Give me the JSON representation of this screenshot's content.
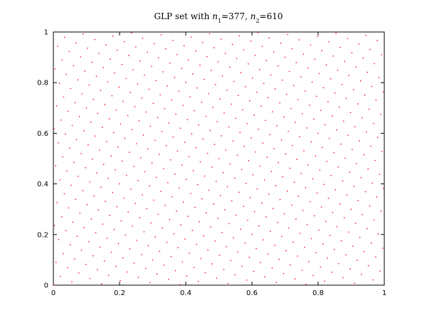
{
  "chart_data": {
    "type": "scatter",
    "title": [
      {
        "text": "GLP set with ",
        "style": "normal"
      },
      {
        "text": "n",
        "style": "italic"
      },
      {
        "text": "1",
        "style": "sub"
      },
      {
        "text": "=377, ",
        "style": "normal"
      },
      {
        "text": "n",
        "style": "italic"
      },
      {
        "text": "2",
        "style": "sub"
      },
      {
        "text": "=610",
        "style": "normal"
      }
    ],
    "color": "#ff0000",
    "xlim": [
      0,
      1
    ],
    "ylim": [
      0,
      1
    ],
    "xticks": [
      0,
      0.2,
      0.4,
      0.6,
      0.8,
      1
    ],
    "yticks": [
      0,
      0.2,
      0.4,
      0.6,
      0.8,
      1
    ],
    "grid": false,
    "x": [
      0.0,
      0.002,
      0.003,
      0.005,
      0.007,
      0.008,
      0.01,
      0.011,
      0.013,
      0.015,
      0.016,
      0.018,
      0.02,
      0.021,
      0.023,
      0.025,
      0.026,
      0.028,
      0.03,
      0.031,
      0.033,
      0.034,
      0.036,
      0.038,
      0.039,
      0.041,
      0.043,
      0.044,
      0.046,
      0.048,
      0.049,
      0.051,
      0.052,
      0.054,
      0.056,
      0.057,
      0.059,
      0.061,
      0.062,
      0.064,
      0.066,
      0.067,
      0.069,
      0.07,
      0.072,
      0.074,
      0.075,
      0.077,
      0.079,
      0.08,
      0.082,
      0.084,
      0.085,
      0.087,
      0.089,
      0.09,
      0.092,
      0.093,
      0.095,
      0.097,
      0.098,
      0.1,
      0.102,
      0.103,
      0.105,
      0.107,
      0.108,
      0.11,
      0.111,
      0.113,
      0.115,
      0.116,
      0.118,
      0.12,
      0.121,
      0.123,
      0.125,
      0.126,
      0.128,
      0.13,
      0.131,
      0.133,
      0.134,
      0.136,
      0.138,
      0.139,
      0.141,
      0.143,
      0.144,
      0.146,
      0.148,
      0.149,
      0.151,
      0.152,
      0.154,
      0.156,
      0.157,
      0.159,
      0.161,
      0.162,
      0.164,
      0.166,
      0.167,
      0.169,
      0.17,
      0.172,
      0.174,
      0.175,
      0.177,
      0.179,
      0.18,
      0.182,
      0.184,
      0.185,
      0.187,
      0.189,
      0.19,
      0.192,
      0.193,
      0.195,
      0.197,
      0.198,
      0.2,
      0.202,
      0.203,
      0.205,
      0.207,
      0.208,
      0.21,
      0.211,
      0.213,
      0.215,
      0.216,
      0.218,
      0.22,
      0.221,
      0.223,
      0.225,
      0.226,
      0.228,
      0.23,
      0.231,
      0.233,
      0.234,
      0.236,
      0.238,
      0.239,
      0.241,
      0.243,
      0.244,
      0.246,
      0.248,
      0.249,
      0.251,
      0.252,
      0.254,
      0.256,
      0.257,
      0.259,
      0.261,
      0.262,
      0.264,
      0.266,
      0.267,
      0.269,
      0.27,
      0.272,
      0.274,
      0.275,
      0.277,
      0.279,
      0.28,
      0.282,
      0.284,
      0.285,
      0.287,
      0.289,
      0.29,
      0.292,
      0.293,
      0.295,
      0.297,
      0.298,
      0.3,
      0.302,
      0.303,
      0.305,
      0.307,
      0.308,
      0.31,
      0.311,
      0.313,
      0.315,
      0.316,
      0.318,
      0.32,
      0.321,
      0.323,
      0.325,
      0.326,
      0.328,
      0.33,
      0.331,
      0.333,
      0.334,
      0.336,
      0.338,
      0.339,
      0.341,
      0.343,
      0.344,
      0.346,
      0.348,
      0.349,
      0.351,
      0.352,
      0.354,
      0.356,
      0.357,
      0.359,
      0.361,
      0.362,
      0.364,
      0.366,
      0.367,
      0.369,
      0.37,
      0.372,
      0.374,
      0.375,
      0.377,
      0.379,
      0.38,
      0.382,
      0.384,
      0.385,
      0.387,
      0.389,
      0.39,
      0.392,
      0.393,
      0.395,
      0.397,
      0.398,
      0.4,
      0.402,
      0.403,
      0.405,
      0.407,
      0.408,
      0.41,
      0.411,
      0.413,
      0.415,
      0.416,
      0.418,
      0.42,
      0.421,
      0.423,
      0.425,
      0.426,
      0.428,
      0.43,
      0.431,
      0.433,
      0.434,
      0.436,
      0.438,
      0.439,
      0.441,
      0.443,
      0.444,
      0.446,
      0.448,
      0.449,
      0.451,
      0.452,
      0.454,
      0.456,
      0.457,
      0.459,
      0.461,
      0.462,
      0.464,
      0.466,
      0.467,
      0.469,
      0.47,
      0.472,
      0.474,
      0.475,
      0.477,
      0.479,
      0.48,
      0.482,
      0.484,
      0.485,
      0.487,
      0.489,
      0.49,
      0.492,
      0.493,
      0.495,
      0.497,
      0.498,
      0.5,
      0.502,
      0.503,
      0.505,
      0.507,
      0.508,
      0.51,
      0.511,
      0.513,
      0.515,
      0.516,
      0.518,
      0.52,
      0.521,
      0.523,
      0.525,
      0.526,
      0.528,
      0.53,
      0.531,
      0.533,
      0.534,
      0.536,
      0.538,
      0.539,
      0.541,
      0.543,
      0.544,
      0.546,
      0.548,
      0.549,
      0.551,
      0.552,
      0.554,
      0.556,
      0.557,
      0.559,
      0.561,
      0.562,
      0.564,
      0.566,
      0.567,
      0.569,
      0.57,
      0.572,
      0.574,
      0.575,
      0.577,
      0.579,
      0.58,
      0.582,
      0.584,
      0.585,
      0.587,
      0.589,
      0.59,
      0.592,
      0.593,
      0.595,
      0.597,
      0.598,
      0.6,
      0.602,
      0.603,
      0.605,
      0.607,
      0.608,
      0.61,
      0.611,
      0.613,
      0.615,
      0.616,
      0.618,
      0.62,
      0.621,
      0.623,
      0.625,
      0.626,
      0.628,
      0.63,
      0.631,
      0.633,
      0.634,
      0.636,
      0.638,
      0.639,
      0.641,
      0.643,
      0.644,
      0.646,
      0.648,
      0.649,
      0.651,
      0.652,
      0.654,
      0.656,
      0.657,
      0.659,
      0.661,
      0.662,
      0.664,
      0.666,
      0.667,
      0.669,
      0.67,
      0.672,
      0.674,
      0.675,
      0.677,
      0.679,
      0.68,
      0.682,
      0.684,
      0.685,
      0.687,
      0.689,
      0.69,
      0.692,
      0.693,
      0.695,
      0.697,
      0.698,
      0.7,
      0.702,
      0.703,
      0.705,
      0.707,
      0.708,
      0.71,
      0.711,
      0.713,
      0.715,
      0.716,
      0.718,
      0.72,
      0.721,
      0.723,
      0.725,
      0.726,
      0.728,
      0.73,
      0.731,
      0.733,
      0.734,
      0.736,
      0.738,
      0.739,
      0.741,
      0.743,
      0.744,
      0.746,
      0.748,
      0.749,
      0.751,
      0.752,
      0.754,
      0.756,
      0.757,
      0.759,
      0.761,
      0.762,
      0.764,
      0.766,
      0.767,
      0.769,
      0.77,
      0.772,
      0.774,
      0.775,
      0.777,
      0.779,
      0.78,
      0.782,
      0.784,
      0.785,
      0.787,
      0.789,
      0.79,
      0.792,
      0.793,
      0.795,
      0.797,
      0.798,
      0.8,
      0.802,
      0.803,
      0.805,
      0.807,
      0.808,
      0.81,
      0.811,
      0.813,
      0.815,
      0.816,
      0.818,
      0.82,
      0.821,
      0.823,
      0.825,
      0.826,
      0.828,
      0.83,
      0.831,
      0.833,
      0.834,
      0.836,
      0.838,
      0.839,
      0.841,
      0.843,
      0.844,
      0.846,
      0.848,
      0.849,
      0.851,
      0.852,
      0.854,
      0.856,
      0.857,
      0.859,
      0.861,
      0.862,
      0.864,
      0.866,
      0.867,
      0.869,
      0.87,
      0.872,
      0.874,
      0.875,
      0.877,
      0.879,
      0.88,
      0.882,
      0.884,
      0.885,
      0.887,
      0.889,
      0.89,
      0.892,
      0.893,
      0.895,
      0.897,
      0.898,
      0.9,
      0.902,
      0.903,
      0.905,
      0.907,
      0.908,
      0.91,
      0.911,
      0.913,
      0.915,
      0.916,
      0.918,
      0.92,
      0.921,
      0.923,
      0.925,
      0.926,
      0.928,
      0.93,
      0.931,
      0.933,
      0.934,
      0.936,
      0.938,
      0.939,
      0.941,
      0.943,
      0.944,
      0.946,
      0.948,
      0.949,
      0.951,
      0.952,
      0.954,
      0.956,
      0.957,
      0.959,
      0.961,
      0.962,
      0.964,
      0.966,
      0.967,
      0.969,
      0.97,
      0.972,
      0.974,
      0.975,
      0.977,
      0.979,
      0.98,
      0.982,
      0.984,
      0.985,
      0.987,
      0.989,
      0.99,
      0.992,
      0.993,
      0.995,
      0.997,
      0.998
    ],
    "values": [
      0.0,
      0.618,
      0.236,
      0.854,
      0.472,
      0.09,
      0.708,
      0.326,
      0.944,
      0.562,
      0.18,
      0.798,
      0.416,
      0.034,
      0.652,
      0.27,
      0.889,
      0.507,
      0.125,
      0.743,
      0.361,
      0.979,
      0.597,
      0.215,
      0.833,
      0.451,
      0.069,
      0.687,
      0.305,
      0.923,
      0.541,
      0.159,
      0.777,
      0.395,
      0.013,
      0.631,
      0.249,
      0.867,
      0.485,
      0.103,
      0.721,
      0.339,
      0.957,
      0.575,
      0.193,
      0.811,
      0.43,
      0.048,
      0.666,
      0.284,
      0.902,
      0.52,
      0.138,
      0.756,
      0.374,
      0.992,
      0.61,
      0.228,
      0.846,
      0.464,
      0.082,
      0.7,
      0.318,
      0.936,
      0.554,
      0.172,
      0.79,
      0.408,
      0.026,
      0.644,
      0.262,
      0.88,
      0.498,
      0.116,
      0.734,
      0.352,
      0.97,
      0.589,
      0.207,
      0.825,
      0.443,
      0.061,
      0.679,
      0.297,
      0.915,
      0.533,
      0.151,
      0.769,
      0.387,
      0.005,
      0.623,
      0.241,
      0.859,
      0.477,
      0.095,
      0.713,
      0.331,
      0.949,
      0.567,
      0.185,
      0.803,
      0.421,
      0.039,
      0.657,
      0.275,
      0.893,
      0.511,
      0.13,
      0.748,
      0.366,
      0.984,
      0.602,
      0.22,
      0.838,
      0.456,
      0.074,
      0.692,
      0.31,
      0.928,
      0.546,
      0.164,
      0.782,
      0.4,
      0.018,
      0.636,
      0.254,
      0.872,
      0.49,
      0.108,
      0.726,
      0.344,
      0.962,
      0.58,
      0.198,
      0.816,
      0.434,
      0.052,
      0.67,
      0.289,
      0.907,
      0.525,
      0.143,
      0.761,
      0.379,
      0.997,
      0.615,
      0.233,
      0.851,
      0.469,
      0.087,
      0.705,
      0.323,
      0.941,
      0.559,
      0.177,
      0.795,
      0.413,
      0.031,
      0.649,
      0.267,
      0.885,
      0.503,
      0.121,
      0.739,
      0.357,
      0.975,
      0.593,
      0.211,
      0.83,
      0.448,
      0.066,
      0.684,
      0.302,
      0.92,
      0.538,
      0.156,
      0.774,
      0.392,
      0.01,
      0.628,
      0.246,
      0.864,
      0.482,
      0.1,
      0.718,
      0.336,
      0.954,
      0.572,
      0.19,
      0.808,
      0.426,
      0.044,
      0.662,
      0.28,
      0.898,
      0.516,
      0.134,
      0.752,
      0.37,
      0.989,
      0.607,
      0.225,
      0.843,
      0.461,
      0.079,
      0.697,
      0.315,
      0.933,
      0.551,
      0.169,
      0.787,
      0.405,
      0.023,
      0.641,
      0.259,
      0.877,
      0.495,
      0.113,
      0.731,
      0.349,
      0.967,
      0.585,
      0.203,
      0.821,
      0.439,
      0.057,
      0.675,
      0.293,
      0.911,
      0.53,
      0.148,
      0.766,
      0.384,
      0.002,
      0.62,
      0.238,
      0.856,
      0.474,
      0.092,
      0.71,
      0.328,
      0.946,
      0.564,
      0.182,
      0.8,
      0.418,
      0.036,
      0.654,
      0.272,
      0.89,
      0.508,
      0.126,
      0.744,
      0.362,
      0.98,
      0.598,
      0.216,
      0.834,
      0.452,
      0.07,
      0.689,
      0.307,
      0.925,
      0.543,
      0.161,
      0.779,
      0.397,
      0.015,
      0.633,
      0.251,
      0.869,
      0.487,
      0.105,
      0.723,
      0.341,
      0.959,
      0.577,
      0.195,
      0.813,
      0.431,
      0.049,
      0.667,
      0.285,
      0.903,
      0.521,
      0.139,
      0.757,
      0.375,
      0.993,
      0.611,
      0.23,
      0.848,
      0.466,
      0.084,
      0.702,
      0.32,
      0.938,
      0.556,
      0.174,
      0.792,
      0.41,
      0.028,
      0.646,
      0.264,
      0.882,
      0.5,
      0.118,
      0.736,
      0.354,
      0.972,
      0.59,
      0.208,
      0.826,
      0.444,
      0.062,
      0.68,
      0.298,
      0.916,
      0.534,
      0.152,
      0.77,
      0.389,
      0.007,
      0.625,
      0.243,
      0.861,
      0.479,
      0.097,
      0.715,
      0.333,
      0.951,
      0.569,
      0.187,
      0.805,
      0.423,
      0.041,
      0.659,
      0.277,
      0.895,
      0.513,
      0.131,
      0.749,
      0.367,
      0.985,
      0.603,
      0.221,
      0.839,
      0.457,
      0.075,
      0.693,
      0.311,
      0.93,
      0.548,
      0.166,
      0.784,
      0.402,
      0.02,
      0.638,
      0.256,
      0.874,
      0.492,
      0.11,
      0.728,
      0.346,
      0.964,
      0.582,
      0.2,
      0.818,
      0.436,
      0.054,
      0.672,
      0.29,
      0.908,
      0.526,
      0.144,
      0.762,
      0.38,
      0.998,
      0.616,
      0.234,
      0.852,
      0.47,
      0.089,
      0.707,
      0.325,
      0.943,
      0.561,
      0.179,
      0.797,
      0.415,
      0.033,
      0.651,
      0.269,
      0.887,
      0.505,
      0.123,
      0.741,
      0.359,
      0.977,
      0.595,
      0.213,
      0.831,
      0.449,
      0.067,
      0.685,
      0.303,
      0.921,
      0.539,
      0.157,
      0.775,
      0.393,
      0.011,
      0.63,
      0.248,
      0.866,
      0.484,
      0.102,
      0.72,
      0.338,
      0.956,
      0.574,
      0.192,
      0.81,
      0.428,
      0.046,
      0.664,
      0.282,
      0.9,
      0.518,
      0.136,
      0.754,
      0.372,
      0.99,
      0.608,
      0.226,
      0.844,
      0.462,
      0.08,
      0.698,
      0.316,
      0.934,
      0.552,
      0.17,
      0.789,
      0.407,
      0.025,
      0.643,
      0.261,
      0.879,
      0.497,
      0.115,
      0.733,
      0.351,
      0.969,
      0.587,
      0.205,
      0.823,
      0.441,
      0.059,
      0.677,
      0.295,
      0.913,
      0.531,
      0.149,
      0.767,
      0.385,
      0.003,
      0.621,
      0.239,
      0.857,
      0.475,
      0.093,
      0.711,
      0.33,
      0.948,
      0.566,
      0.184,
      0.802,
      0.42,
      0.038,
      0.656,
      0.274,
      0.892,
      0.51,
      0.128,
      0.746,
      0.364,
      0.982,
      0.6,
      0.218,
      0.836,
      0.454,
      0.072,
      0.69,
      0.308,
      0.926,
      0.544,
      0.162,
      0.78,
      0.398,
      0.016,
      0.634,
      0.252,
      0.87,
      0.489,
      0.107,
      0.725,
      0.343,
      0.961,
      0.579,
      0.197,
      0.815,
      0.433,
      0.051,
      0.669,
      0.287,
      0.905,
      0.523,
      0.141,
      0.759,
      0.377,
      0.995,
      0.613,
      0.231,
      0.849,
      0.467,
      0.085,
      0.703,
      0.321,
      0.939,
      0.557,
      0.175,
      0.793,
      0.411,
      0.03,
      0.648,
      0.266,
      0.884,
      0.502,
      0.12,
      0.738,
      0.356,
      0.974,
      0.592,
      0.21,
      0.828,
      0.446,
      0.064,
      0.682,
      0.3,
      0.918,
      0.536,
      0.154,
      0.772,
      0.39,
      0.008,
      0.626,
      0.244,
      0.862,
      0.48,
      0.098,
      0.716,
      0.334,
      0.952,
      0.57,
      0.189,
      0.807,
      0.425,
      0.043,
      0.661,
      0.279,
      0.897,
      0.515,
      0.133,
      0.751,
      0.369,
      0.987,
      0.605,
      0.223,
      0.841,
      0.459,
      0.077,
      0.695,
      0.313,
      0.931,
      0.549,
      0.167,
      0.785,
      0.403,
      0.021,
      0.639,
      0.257,
      0.875,
      0.493,
      0.111,
      0.73,
      0.348,
      0.966,
      0.584,
      0.202,
      0.82,
      0.438,
      0.056,
      0.674,
      0.292,
      0.91,
      0.528,
      0.146,
      0.764,
      0.382
    ]
  }
}
